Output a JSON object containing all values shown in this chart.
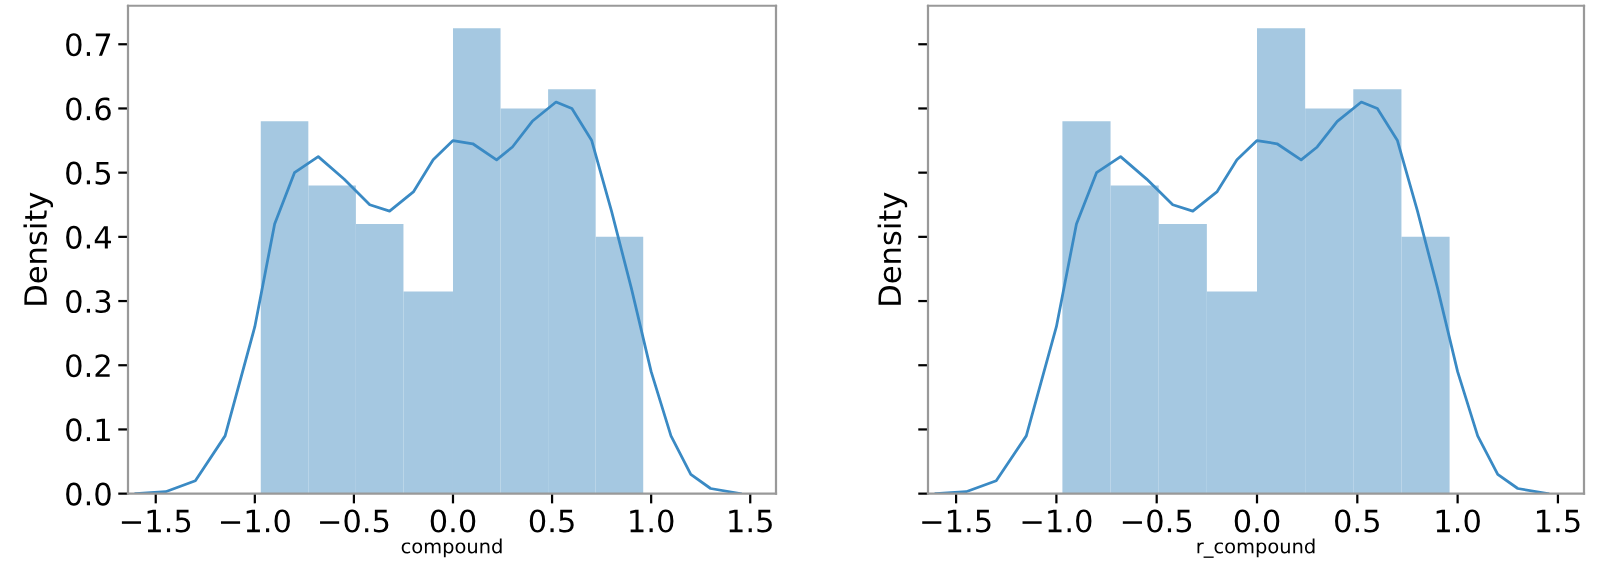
{
  "chart_data": [
    {
      "type": "histogram",
      "xlabel": "compound",
      "ylabel": "Density",
      "xlim": [
        -1.64,
        1.63
      ],
      "ylim": [
        0,
        0.76
      ],
      "xticks": [
        {
          "value": -1.5,
          "label": "−1.5"
        },
        {
          "value": -1.0,
          "label": "−1.0"
        },
        {
          "value": -0.5,
          "label": "−0.5"
        },
        {
          "value": 0.0,
          "label": "0.0"
        },
        {
          "value": 0.5,
          "label": "0.5"
        },
        {
          "value": 1.0,
          "label": "1.0"
        },
        {
          "value": 1.5,
          "label": "1.5"
        }
      ],
      "yticks": [
        {
          "value": 0.0,
          "label": "0.0"
        },
        0.1,
        0.2,
        0.3,
        0.4,
        0.5,
        0.6,
        0.7
      ],
      "grid": false,
      "series": [
        {
          "color": "#a5c8e1",
          "bins": [
            -0.97,
            -0.73,
            -0.49,
            -0.25,
            0.0,
            0.24,
            0.48,
            0.72,
            0.96
          ],
          "values": [
            0.58,
            0.48,
            0.42,
            0.315,
            0.725,
            0.6,
            0.63,
            0.4
          ]
        },
        {
          "type": "line",
          "color": "#3a8ac4",
          "x": [
            -1.6,
            -1.45,
            -1.3,
            -1.15,
            -1.0,
            -0.9,
            -0.8,
            -0.68,
            -0.55,
            -0.42,
            -0.32,
            -0.2,
            -0.1,
            0.0,
            0.1,
            0.22,
            0.3,
            0.4,
            0.52,
            0.6,
            0.7,
            0.8,
            0.9,
            1.0,
            1.1,
            1.2,
            1.3,
            1.45
          ],
          "values": [
            0.0,
            0.003,
            0.02,
            0.09,
            0.26,
            0.42,
            0.5,
            0.525,
            0.49,
            0.45,
            0.44,
            0.47,
            0.52,
            0.55,
            0.545,
            0.52,
            0.54,
            0.58,
            0.61,
            0.6,
            0.55,
            0.44,
            0.32,
            0.19,
            0.09,
            0.03,
            0.008,
            0.0
          ]
        }
      ]
    },
    {
      "type": "histogram",
      "xlabel": "r_compound",
      "ylabel": "Density",
      "tick_labels": "x",
      "xlim": [
        -1.64,
        1.63
      ],
      "ylim": [
        0,
        0.76
      ],
      "xticks": [
        {
          "value": -1.5,
          "label": "−1.5"
        },
        {
          "value": -1.0,
          "label": "−1.0"
        },
        {
          "value": -0.5,
          "label": "−0.5"
        },
        {
          "value": 0.0,
          "label": "0.0"
        },
        {
          "value": 0.5,
          "label": "0.5"
        },
        {
          "value": 1.0,
          "label": "1.0"
        },
        {
          "value": 1.5,
          "label": "1.5"
        }
      ],
      "yticks": [
        {
          "value": 0.0,
          "label": null
        },
        {
          "value": 0.1,
          "label": null
        },
        {
          "value": 0.2,
          "label": null
        },
        {
          "value": 0.3,
          "label": null
        },
        {
          "value": 0.4,
          "label": null
        },
        {
          "value": 0.5,
          "label": null
        },
        {
          "value": 0.6,
          "label": null
        },
        {
          "value": 0.7,
          "label": null
        }
      ],
      "grid": false,
      "series": [
        {
          "color": "#a5c8e1",
          "bins": [
            -0.97,
            -0.73,
            -0.49,
            -0.25,
            0.0,
            0.24,
            0.48,
            0.72,
            0.96
          ],
          "values": [
            0.58,
            0.48,
            0.42,
            0.315,
            0.725,
            0.6,
            0.63,
            0.4
          ]
        },
        {
          "type": "line",
          "color": "#3a8ac4",
          "x": [
            -1.6,
            -1.45,
            -1.3,
            -1.15,
            -1.0,
            -0.9,
            -0.8,
            -0.68,
            -0.55,
            -0.42,
            -0.32,
            -0.2,
            -0.1,
            0.0,
            0.1,
            0.22,
            0.3,
            0.4,
            0.52,
            0.6,
            0.7,
            0.8,
            0.9,
            1.0,
            1.1,
            1.2,
            1.3,
            1.45
          ],
          "values": [
            0.0,
            0.003,
            0.02,
            0.09,
            0.26,
            0.42,
            0.5,
            0.525,
            0.49,
            0.45,
            0.44,
            0.47,
            0.52,
            0.55,
            0.545,
            0.52,
            0.54,
            0.58,
            0.61,
            0.6,
            0.55,
            0.44,
            0.32,
            0.19,
            0.09,
            0.03,
            0.008,
            0.0
          ]
        }
      ]
    }
  ]
}
